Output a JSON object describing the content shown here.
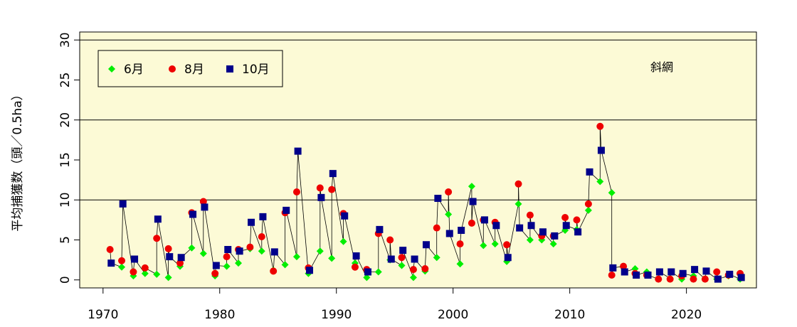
{
  "chart_data": {
    "type": "line",
    "title": "",
    "xlabel": "",
    "ylabel": "平均捕獲数（頭／0.5ha）",
    "annotation": "斜網",
    "xlim": [
      1968,
      2026
    ],
    "ylim": [
      -1,
      31
    ],
    "xticks": [
      1970,
      1980,
      1990,
      2000,
      2010,
      2020
    ],
    "yticks": [
      0,
      5,
      10,
      15,
      20,
      25,
      30
    ],
    "gridlines_y": [
      10,
      20,
      30
    ],
    "background_color": "#fcfad6",
    "legend_position": "top-left",
    "connect_points": true,
    "series": [
      {
        "name": "6月",
        "marker": "diamond",
        "color": "#00ee00",
        "x": [
          1971.6,
          1972.6,
          1973.6,
          1974.6,
          1975.6,
          1976.6,
          1977.6,
          1978.6,
          1979.6,
          1980.6,
          1981.6,
          1982.6,
          1983.6,
          1984.6,
          1985.6,
          1986.6,
          1987.6,
          1988.6,
          1989.6,
          1990.6,
          1991.6,
          1992.6,
          1993.6,
          1994.6,
          1995.6,
          1996.6,
          1997.6,
          1998.6,
          1999.6,
          2000.6,
          2001.6,
          2002.6,
          2003.6,
          2004.6,
          2005.6,
          2006.6,
          2007.6,
          2008.6,
          2009.6,
          2010.6,
          2011.6,
          2012.6,
          2013.6,
          2014.6,
          2015.6,
          2016.6,
          2017.6,
          2018.6,
          2019.6,
          2020.6,
          2021.6,
          2022.6,
          2023.6,
          2024.6
        ],
        "y": [
          1.6,
          0.5,
          0.8,
          0.7,
          0.3,
          1.7,
          4.0,
          3.3,
          0.5,
          1.7,
          2.1,
          3.9,
          3.6,
          1.2,
          1.9,
          2.9,
          0.8,
          3.6,
          2.7,
          4.8,
          2.1,
          0.3,
          1.0,
          2.5,
          1.8,
          0.3,
          1.1,
          2.8,
          8.2,
          2.0,
          11.7,
          4.3,
          4.5,
          2.3,
          9.5,
          5.0,
          5.0,
          4.5,
          6.2,
          6.3,
          8.7,
          12.3,
          10.9,
          1.7,
          1.4,
          1.0,
          0.1,
          0.2,
          0.1,
          0.5,
          0.1,
          0.1,
          0.5,
          0.1
        ]
      },
      {
        "name": "8月",
        "marker": "circle",
        "color": "#ee0000",
        "x": [
          1970.6,
          1971.6,
          1972.6,
          1973.6,
          1974.6,
          1975.6,
          1976.6,
          1977.6,
          1978.6,
          1979.6,
          1980.6,
          1981.6,
          1982.6,
          1983.6,
          1984.6,
          1985.6,
          1986.6,
          1987.6,
          1988.6,
          1989.6,
          1990.6,
          1991.6,
          1992.6,
          1993.6,
          1994.6,
          1995.6,
          1996.6,
          1997.6,
          1998.6,
          1999.6,
          2000.6,
          2001.6,
          2002.6,
          2003.6,
          2004.6,
          2005.6,
          2006.6,
          2007.6,
          2008.6,
          2009.6,
          2010.6,
          2011.6,
          2012.6,
          2013.6,
          2014.6,
          2015.6,
          2016.6,
          2017.6,
          2018.6,
          2019.6,
          2020.6,
          2021.6,
          2022.6,
          2023.6,
          2024.6
        ],
        "y": [
          3.8,
          2.4,
          1.0,
          1.5,
          5.2,
          3.9,
          2.1,
          8.4,
          9.8,
          0.8,
          2.9,
          3.8,
          4.1,
          5.4,
          1.1,
          8.4,
          11.0,
          1.5,
          11.5,
          11.3,
          8.3,
          1.6,
          1.3,
          5.8,
          5.0,
          2.8,
          1.3,
          1.4,
          6.5,
          11.0,
          4.5,
          7.1,
          7.5,
          7.2,
          4.4,
          12.0,
          8.1,
          5.5,
          5.5,
          7.8,
          7.5,
          9.5,
          19.2,
          0.6,
          1.7,
          0.8,
          0.6,
          0.1,
          0.1,
          0.5,
          0.1,
          0.1,
          1.0,
          0.6,
          0.8
        ]
      },
      {
        "name": "10月",
        "marker": "square",
        "color": "#00008b",
        "x": [
          1970.7,
          1971.7,
          1972.7,
          1974.7,
          1975.7,
          1976.7,
          1977.7,
          1978.7,
          1979.7,
          1980.7,
          1981.7,
          1982.7,
          1983.7,
          1984.7,
          1985.7,
          1986.7,
          1987.7,
          1988.7,
          1989.7,
          1990.7,
          1991.7,
          1992.7,
          1993.7,
          1994.7,
          1995.7,
          1996.7,
          1997.7,
          1998.7,
          1999.7,
          2000.7,
          2001.7,
          2002.7,
          2003.7,
          2004.7,
          2005.7,
          2006.7,
          2007.7,
          2008.7,
          2009.7,
          2010.7,
          2011.7,
          2012.7,
          2013.7,
          2014.7,
          2015.7,
          2016.7,
          2017.7,
          2018.7,
          2019.7,
          2020.7,
          2021.7,
          2022.7,
          2023.7,
          2024.7
        ],
        "y": [
          2.1,
          9.5,
          2.6,
          7.6,
          2.9,
          2.8,
          8.2,
          9.1,
          1.8,
          3.8,
          3.6,
          7.2,
          7.9,
          3.5,
          8.7,
          16.1,
          1.2,
          10.3,
          13.3,
          8.0,
          3.0,
          1.0,
          6.3,
          2.6,
          3.7,
          2.6,
          4.4,
          10.2,
          5.8,
          6.2,
          9.8,
          7.5,
          6.8,
          2.8,
          6.5,
          6.8,
          6.0,
          5.5,
          6.8,
          6.0,
          13.5,
          16.2,
          1.5,
          1.0,
          0.6,
          0.6,
          1.0,
          1.0,
          0.8,
          1.3,
          1.1,
          0.1,
          0.7,
          0.3
        ]
      }
    ]
  }
}
